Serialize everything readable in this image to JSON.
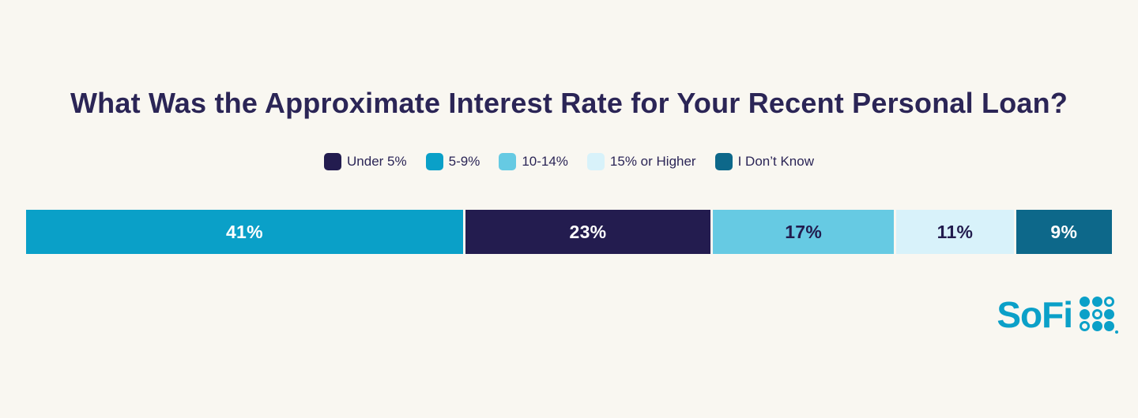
{
  "colors": {
    "background": "#F9F7F1",
    "title_text": "#2B2556",
    "legend_text": "#2B2556",
    "brand": "#0BA0C8"
  },
  "chart_data": {
    "type": "bar",
    "variant": "stacked-horizontal-single-bar",
    "title": "What Was the Approximate Interest Rate for Your Recent Personal Loan?",
    "legend_position": "top-center",
    "legend": [
      {
        "label": "Under 5%",
        "color": "#231C4F"
      },
      {
        "label": "5-9%",
        "color": "#0AA0C8"
      },
      {
        "label": "10-14%",
        "color": "#66CAE3"
      },
      {
        "label": "15% or Higher",
        "color": "#D8F2FA"
      },
      {
        "label": "I Don’t Know",
        "color": "#0D688A"
      }
    ],
    "segments": [
      {
        "label": "5-9%",
        "value": 41,
        "display": "41%",
        "color": "#0AA0C8",
        "text_color": "#FFFFFF"
      },
      {
        "label": "Under 5%",
        "value": 23,
        "display": "23%",
        "color": "#231C4F",
        "text_color": "#FFFFFF"
      },
      {
        "label": "10-14%",
        "value": 17,
        "display": "17%",
        "color": "#66CAE3",
        "text_color": "#221C4E"
      },
      {
        "label": "15% or Higher",
        "value": 11,
        "display": "11%",
        "color": "#D8F2FA",
        "text_color": "#221C4E"
      },
      {
        "label": "I Don’t Know",
        "value": 9,
        "display": "9%",
        "color": "#0D688A",
        "text_color": "#FFFFFF"
      }
    ]
  },
  "branding": {
    "logo_text": "SoFi",
    "logo_dots": [
      [
        1,
        1,
        0
      ],
      [
        1,
        0,
        1
      ],
      [
        0,
        1,
        1
      ]
    ]
  }
}
